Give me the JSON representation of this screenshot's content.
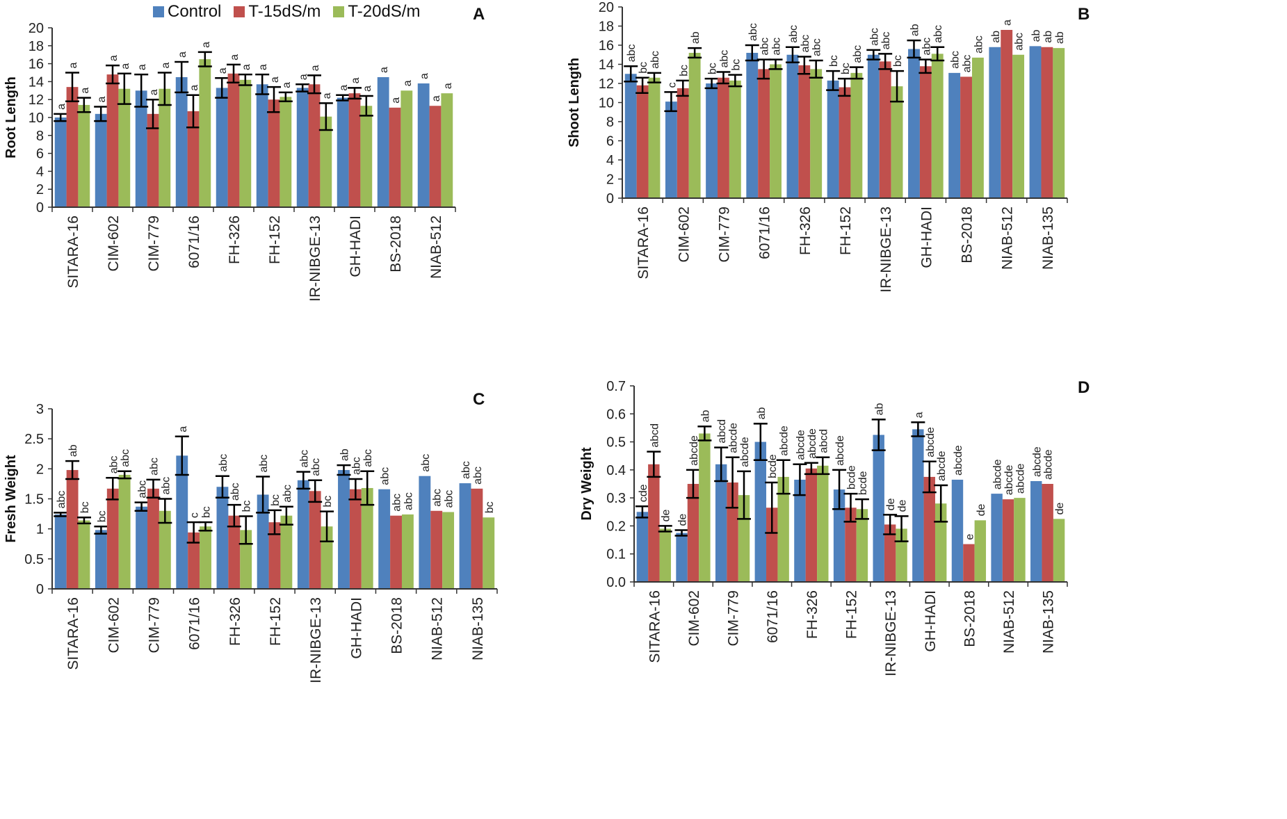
{
  "legend": {
    "items": [
      {
        "name": "Control",
        "color": "#4f81bd"
      },
      {
        "name": "T-15dS/m",
        "color": "#c0504d"
      },
      {
        "name": "T-20dS/m",
        "color": "#9bbb59"
      }
    ]
  },
  "chart_data": [
    {
      "panel": "A",
      "type": "bar",
      "title": "",
      "ylabel": "Root Length",
      "xlabel": "",
      "ylim": [
        0,
        20
      ],
      "ytick_step": 2,
      "ytick_decimals": 0,
      "grid": false,
      "categories": [
        "SITARA-16",
        "CIM-602",
        "CIM-779",
        "6071/16",
        "FH-326",
        "FH-152",
        "IR-NIBGE-13",
        "GH-HADI",
        "BS-2018",
        "NIAB-512"
      ],
      "series": [
        {
          "name": "Control",
          "values": [
            10.0,
            10.4,
            13.0,
            14.5,
            13.3,
            13.7,
            13.3,
            12.2,
            14.5,
            13.8
          ],
          "errors": [
            0.4,
            0.8,
            1.8,
            1.7,
            1.1,
            1.1,
            0.4,
            0.3,
            null,
            null
          ],
          "labels": [
            "a",
            "a",
            "a",
            "a",
            "a",
            "a",
            "a",
            "a",
            "a",
            "a"
          ]
        },
        {
          "name": "T-15dS/m",
          "values": [
            13.4,
            14.8,
            10.4,
            10.7,
            14.9,
            12.0,
            13.7,
            12.7,
            11.1,
            11.3
          ],
          "errors": [
            1.6,
            1.0,
            1.6,
            1.8,
            1.0,
            1.4,
            1.0,
            0.6,
            null,
            null
          ],
          "labels": [
            "a",
            "a",
            "a",
            "a",
            "a",
            "a",
            "a",
            "a",
            "a",
            "a"
          ]
        },
        {
          "name": "T-20dS/m",
          "values": [
            11.4,
            13.2,
            13.2,
            16.5,
            14.2,
            12.3,
            10.1,
            11.3,
            13.0,
            12.7
          ],
          "errors": [
            0.8,
            1.7,
            1.8,
            0.8,
            0.6,
            0.5,
            1.5,
            1.1,
            null,
            null
          ],
          "labels": [
            "a",
            "a",
            "a",
            "a",
            "a",
            "a",
            "a",
            "a",
            "a",
            "a"
          ]
        }
      ]
    },
    {
      "panel": "B",
      "type": "bar",
      "title": "",
      "ylabel": "Shoot Length",
      "xlabel": "",
      "ylim": [
        0,
        20
      ],
      "ytick_step": 2,
      "ytick_decimals": 0,
      "grid": false,
      "categories": [
        "SITARA-16",
        "CIM-602",
        "CIM-779",
        "6071/16",
        "FH-326",
        "FH-152",
        "IR-NIBGE-13",
        "GH-HADI",
        "BS-2018",
        "NIAB-512",
        "NIAB-135"
      ],
      "series": [
        {
          "name": "Control",
          "values": [
            13.0,
            10.1,
            12.0,
            15.2,
            15.0,
            12.3,
            15.0,
            15.6,
            13.1,
            15.8,
            15.9
          ],
          "errors": [
            0.8,
            1.0,
            0.5,
            0.8,
            0.8,
            1.0,
            0.5,
            0.9,
            null,
            null,
            null
          ],
          "labels": [
            "abc",
            "c",
            "bc",
            "abc",
            "abc",
            "bc",
            "abc",
            "ab",
            "abc",
            "ab",
            "ab"
          ]
        },
        {
          "name": "T-15dS/m",
          "values": [
            11.8,
            11.5,
            12.6,
            13.5,
            13.9,
            11.6,
            14.3,
            13.8,
            12.7,
            17.6,
            15.8
          ],
          "errors": [
            0.8,
            0.8,
            0.6,
            1.0,
            0.9,
            0.9,
            0.8,
            0.7,
            null,
            null,
            null
          ],
          "labels": [
            "bc",
            "bc",
            "abc",
            "abc",
            "abc",
            "bc",
            "abc",
            "abc",
            "abc",
            "a",
            "ab"
          ]
        },
        {
          "name": "T-20dS/m",
          "values": [
            12.6,
            15.2,
            12.3,
            14.0,
            13.5,
            13.1,
            11.7,
            15.1,
            14.7,
            15.0,
            15.7
          ],
          "errors": [
            0.5,
            0.5,
            0.6,
            0.5,
            0.9,
            0.6,
            1.6,
            0.7,
            null,
            null,
            null
          ],
          "labels": [
            "abc",
            "ab",
            "bc",
            "abc",
            "abc",
            "abc",
            "bc",
            "abc",
            "abc",
            "abc",
            "ab"
          ]
        }
      ]
    },
    {
      "panel": "C",
      "type": "bar",
      "title": "",
      "ylabel": "Fresh Weight",
      "xlabel": "",
      "ylim": [
        0,
        3
      ],
      "ytick_step": 0.5,
      "ytick_decimals": -1,
      "grid": false,
      "categories": [
        "SITARA-16",
        "CIM-602",
        "CIM-779",
        "6071/16",
        "FH-326",
        "FH-152",
        "IR-NIBGE-13",
        "GH-HADI",
        "BS-2018",
        "NIAB-512",
        "NIAB-135"
      ],
      "series": [
        {
          "name": "Control",
          "values": [
            1.24,
            0.98,
            1.37,
            2.22,
            1.7,
            1.57,
            1.81,
            1.98,
            1.66,
            1.88,
            1.76
          ],
          "errors": [
            0.03,
            0.06,
            0.07,
            0.32,
            0.18,
            0.3,
            0.14,
            0.08,
            null,
            null,
            null
          ],
          "labels": [
            "abc",
            "bc",
            "abc",
            "a",
            "abc",
            "abc",
            "abc",
            "ab",
            "abc",
            "abc",
            "abc"
          ]
        },
        {
          "name": "T-15dS/m",
          "values": [
            1.98,
            1.67,
            1.67,
            0.94,
            1.22,
            1.11,
            1.63,
            1.66,
            1.22,
            1.3,
            1.67
          ],
          "errors": [
            0.15,
            0.18,
            0.15,
            0.17,
            0.18,
            0.2,
            0.18,
            0.17,
            null,
            null,
            null
          ],
          "labels": [
            "ab",
            "abc",
            "abc",
            "c",
            "abc",
            "bc",
            "abc",
            "abc",
            "abc",
            "abc",
            "abc"
          ]
        },
        {
          "name": "T-20dS/m",
          "values": [
            1.14,
            1.9,
            1.3,
            1.04,
            0.98,
            1.22,
            1.04,
            1.68,
            1.24,
            1.28,
            1.19
          ],
          "errors": [
            0.05,
            0.06,
            0.2,
            0.07,
            0.23,
            0.15,
            0.25,
            0.28,
            null,
            null,
            null
          ],
          "labels": [
            "bc",
            "abc",
            "abc",
            "bc",
            "bc",
            "abc",
            "bc",
            "abc",
            "abc",
            "abc",
            "bc"
          ]
        }
      ]
    },
    {
      "panel": "D",
      "type": "bar",
      "title": "",
      "ylabel": "Dry Weight",
      "xlabel": "",
      "ylim": [
        0,
        0.7
      ],
      "ytick_step": 0.1,
      "ytick_decimals": 1,
      "grid": false,
      "categories": [
        "SITARA-16",
        "CIM-602",
        "CIM-779",
        "6071/16",
        "FH-326",
        "FH-152",
        "IR-NIBGE-13",
        "GH-HADI",
        "BS-2018",
        "NIAB-512",
        "NIAB-135"
      ],
      "series": [
        {
          "name": "Control",
          "values": [
            0.25,
            0.175,
            0.42,
            0.5,
            0.365,
            0.33,
            0.525,
            0.545,
            0.365,
            0.315,
            0.36
          ],
          "errors": [
            0.02,
            0.01,
            0.06,
            0.065,
            0.055,
            0.07,
            0.055,
            0.025,
            null,
            null,
            null
          ],
          "labels": [
            "cde",
            "de",
            "abcd",
            "ab",
            "abcde",
            "abcde",
            "ab",
            "a",
            "abcde",
            "abcde",
            "abcde"
          ]
        },
        {
          "name": "T-15dS/m",
          "values": [
            0.42,
            0.35,
            0.355,
            0.265,
            0.405,
            0.265,
            0.205,
            0.375,
            0.135,
            0.295,
            0.35
          ],
          "errors": [
            0.045,
            0.05,
            0.09,
            0.09,
            0.02,
            0.05,
            0.035,
            0.055,
            null,
            null,
            null
          ],
          "labels": [
            "abcd",
            "abcde",
            "abcde",
            "bcde",
            "abcde",
            "bcde",
            "de",
            "abcde",
            "e",
            "abcde",
            "abcde"
          ]
        },
        {
          "name": "T-20dS/m",
          "values": [
            0.19,
            0.53,
            0.31,
            0.375,
            0.415,
            0.26,
            0.19,
            0.28,
            0.22,
            0.3,
            0.225
          ],
          "errors": [
            0.01,
            0.025,
            0.085,
            0.06,
            0.03,
            0.035,
            0.045,
            0.065,
            null,
            null,
            null
          ],
          "labels": [
            "de",
            "ab",
            "abcde",
            "abcde",
            "abcd",
            "bcde",
            "de",
            "abcde",
            "de",
            "abcde",
            "de"
          ]
        }
      ]
    }
  ]
}
